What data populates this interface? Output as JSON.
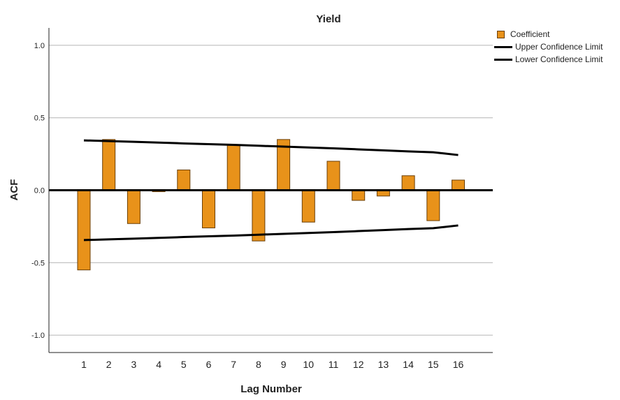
{
  "chart_data": {
    "type": "bar",
    "title": "Yield",
    "xlabel": "Lag Number",
    "ylabel": "ACF",
    "categories": [
      "1",
      "2",
      "3",
      "4",
      "5",
      "6",
      "7",
      "8",
      "9",
      "10",
      "11",
      "12",
      "13",
      "14",
      "15",
      "16"
    ],
    "series": [
      {
        "name": "Coefficient",
        "values": [
          -0.55,
          0.35,
          -0.23,
          -0.01,
          0.14,
          -0.26,
          0.31,
          -0.35,
          0.35,
          -0.22,
          0.2,
          -0.07,
          -0.04,
          0.1,
          -0.21,
          0.07
        ]
      },
      {
        "name": "Upper Confidence Limit",
        "values": [
          0.344,
          0.339,
          0.334,
          0.329,
          0.323,
          0.318,
          0.313,
          0.307,
          0.301,
          0.295,
          0.289,
          0.282,
          0.275,
          0.268,
          0.262,
          0.243
        ]
      },
      {
        "name": "Lower Confidence Limit",
        "values": [
          -0.344,
          -0.339,
          -0.334,
          -0.329,
          -0.323,
          -0.318,
          -0.313,
          -0.307,
          -0.301,
          -0.295,
          -0.289,
          -0.282,
          -0.275,
          -0.268,
          -0.262,
          -0.243
        ]
      }
    ],
    "yticks": [
      "1.0",
      "0.5",
      "0.0",
      "-0.5",
      "-1.0"
    ],
    "ytick_values": [
      1.0,
      0.5,
      0.0,
      -0.5,
      -1.0
    ],
    "ylim": [
      -1.12,
      1.12
    ],
    "grid": true,
    "legend_position": "top-right",
    "colors": {
      "bar": "#e8921a",
      "bar_edge": "#6b3f07",
      "line": "#000000",
      "grid": "#b4b4b4"
    }
  }
}
